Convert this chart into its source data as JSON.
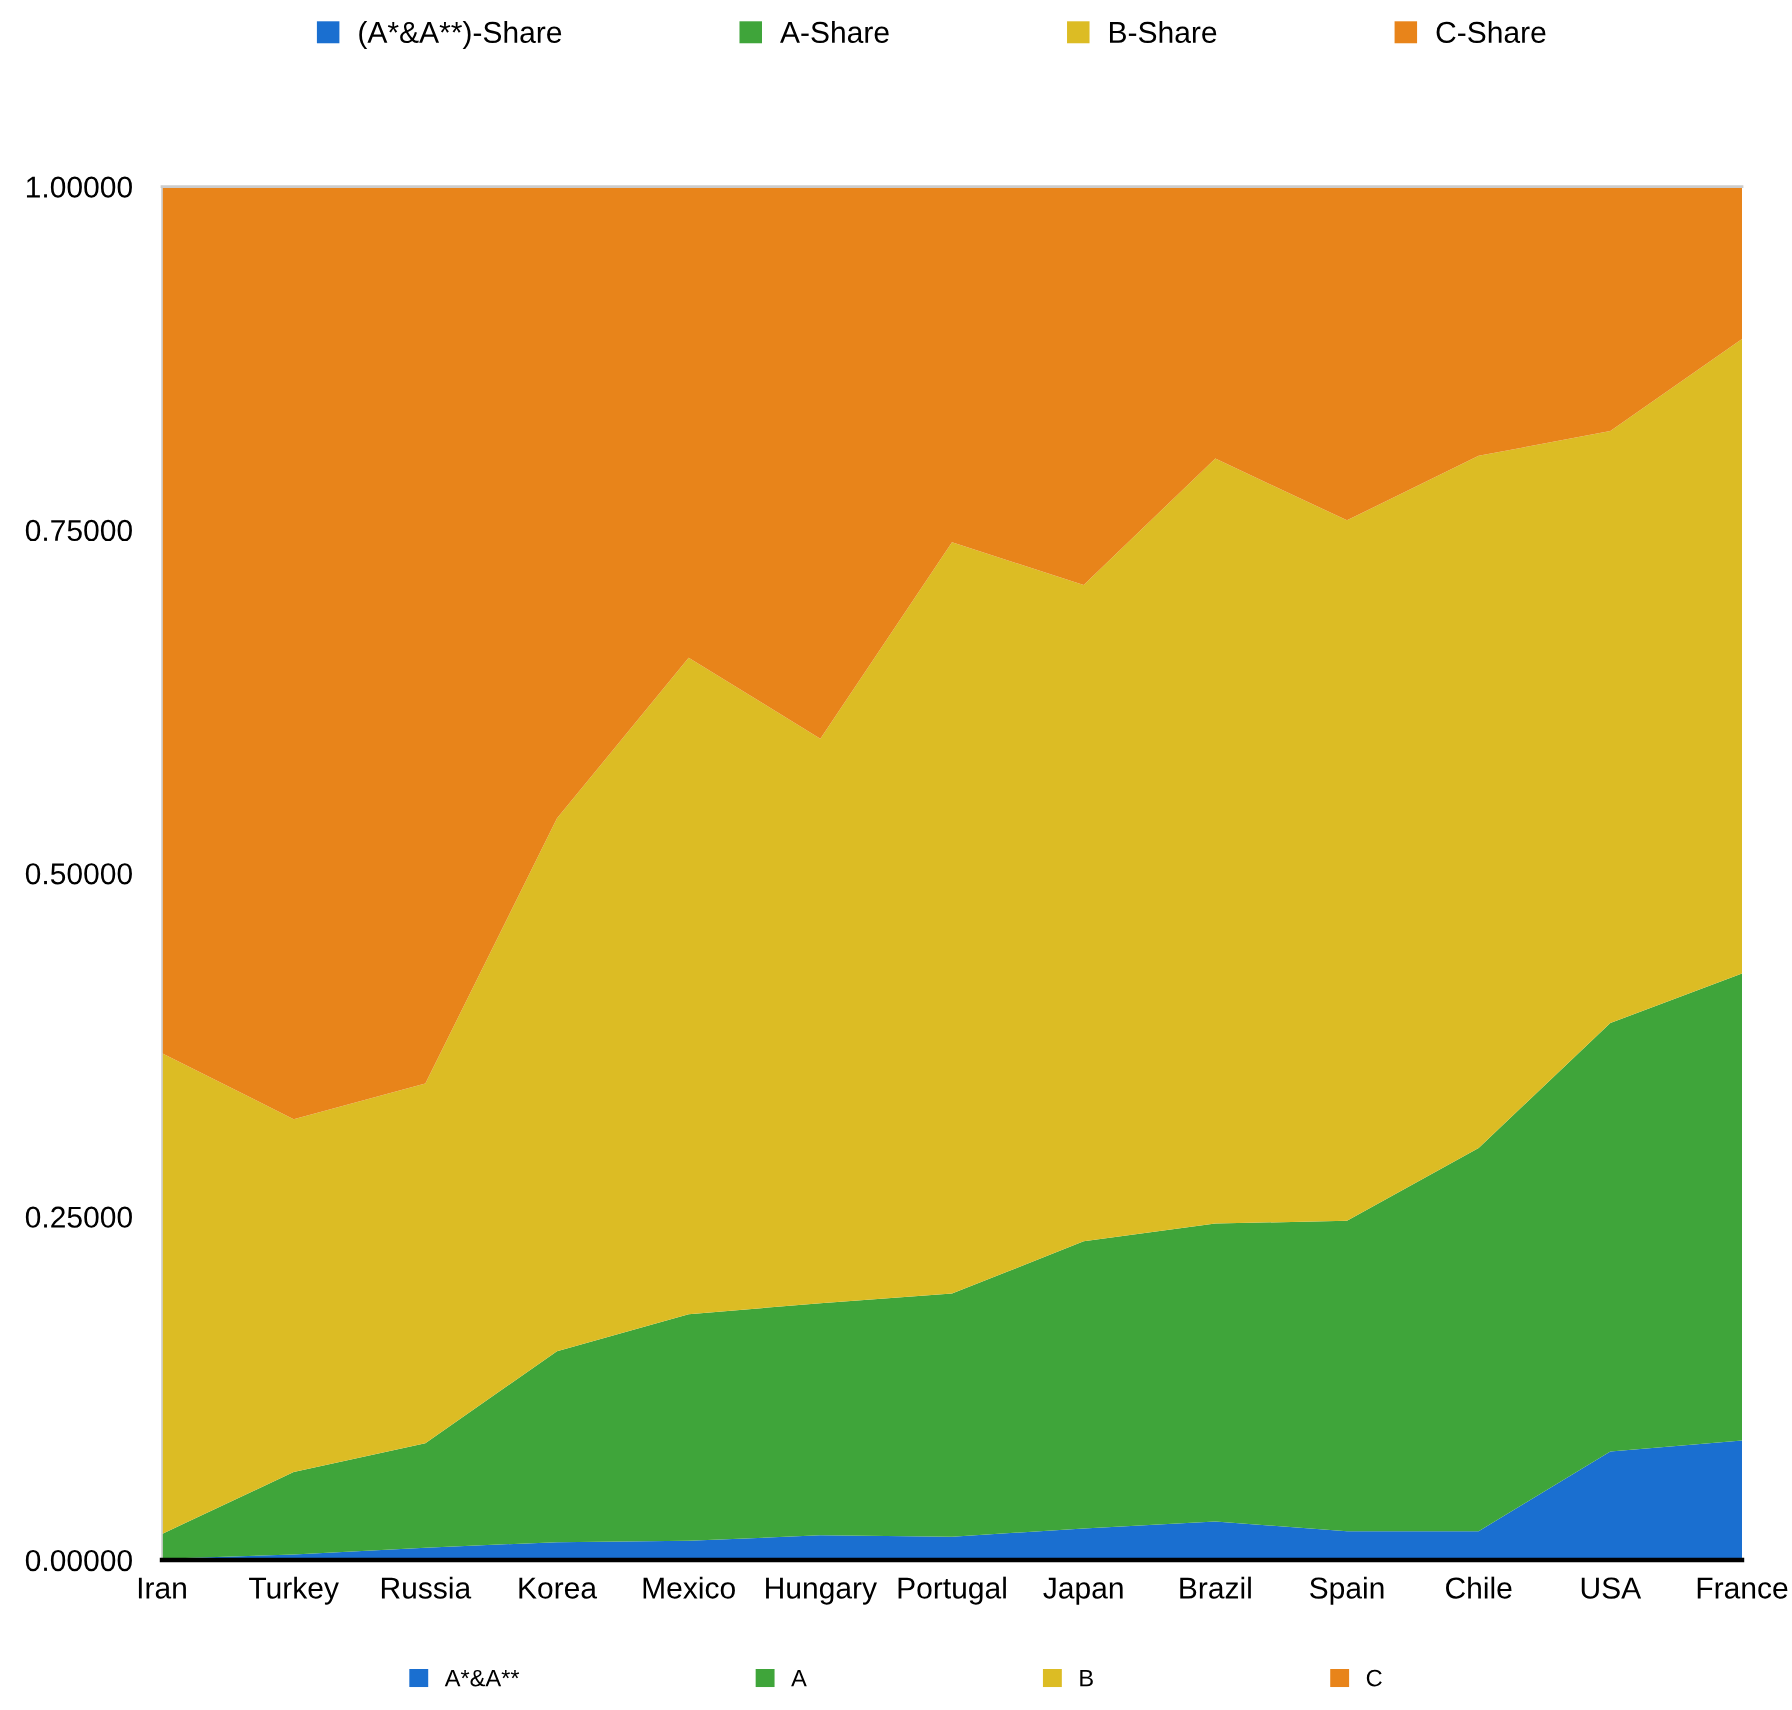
{
  "chart_data": {
    "type": "area",
    "stacked": true,
    "categories": [
      "Iran",
      "Turkey",
      "Russia",
      "Korea",
      "Mexico",
      "Hungary",
      "Portugal",
      "Japan",
      "Brazil",
      "Spain",
      "Chile",
      "USA",
      "France"
    ],
    "series": [
      {
        "name": "(A*&A**)-Share",
        "color": "#1a6fd0",
        "values": [
          0.001,
          0.004,
          0.009,
          0.013,
          0.014,
          0.018,
          0.017,
          0.023,
          0.028,
          0.021,
          0.021,
          0.079,
          0.087
        ]
      },
      {
        "name": "A-Share",
        "color": "#3fa53a",
        "values": [
          0.018,
          0.06,
          0.076,
          0.139,
          0.165,
          0.169,
          0.177,
          0.209,
          0.217,
          0.226,
          0.279,
          0.312,
          0.34
        ]
      },
      {
        "name": "B-Share",
        "color": "#dcbc24",
        "values": [
          0.35,
          0.257,
          0.262,
          0.388,
          0.478,
          0.411,
          0.547,
          0.478,
          0.557,
          0.51,
          0.504,
          0.431,
          0.462
        ]
      },
      {
        "name": "C-Share",
        "color": "#e8841a",
        "values": [
          0.631,
          0.679,
          0.653,
          0.46,
          0.343,
          0.402,
          0.259,
          0.29,
          0.198,
          0.243,
          0.196,
          0.178,
          0.111
        ]
      }
    ],
    "ylim": [
      0,
      1
    ],
    "yticks": [
      {
        "value": 0,
        "label": "0.00000"
      },
      {
        "value": 0.25,
        "label": "0.25000"
      },
      {
        "value": 0.5,
        "label": "0.50000"
      },
      {
        "value": 0.75,
        "label": "0.75000"
      },
      {
        "value": 1,
        "label": "1.00000"
      }
    ],
    "legend": "top",
    "annotations": [
      "A*&A**",
      "A",
      "B",
      "C"
    ]
  }
}
